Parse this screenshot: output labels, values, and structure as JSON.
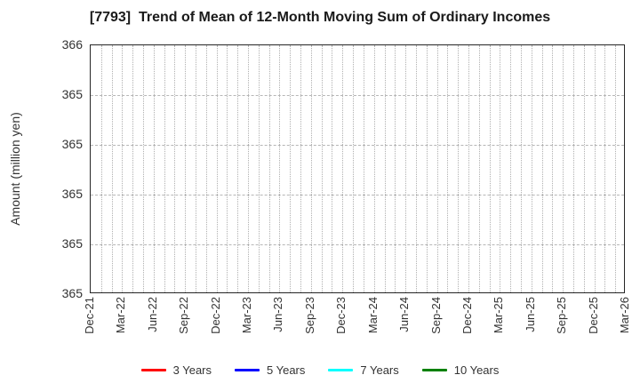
{
  "chart_data": {
    "type": "line",
    "title": "[7793]  Trend of Mean of 12-Month Moving Sum of Ordinary Incomes",
    "xlabel": "",
    "ylabel": "Amount (million yen)",
    "x_tick_labels": [
      "Dec-21",
      "Mar-22",
      "Jun-22",
      "Sep-22",
      "Dec-22",
      "Mar-23",
      "Jun-23",
      "Sep-23",
      "Dec-23",
      "Mar-24",
      "Jun-24",
      "Sep-24",
      "Dec-24",
      "Mar-25",
      "Jun-25",
      "Sep-25",
      "Dec-25",
      "Mar-26"
    ],
    "months_per_tick": 3,
    "y_tick_labels_top_to_bottom": [
      "366",
      "365",
      "365",
      "365",
      "365",
      "365"
    ],
    "ylim_display": [
      365,
      366
    ],
    "grid": true,
    "legend_position": "bottom-center",
    "series": [
      {
        "name": "3 Years",
        "color": "#ff0000",
        "values": []
      },
      {
        "name": "5 Years",
        "color": "#0000ff",
        "values": []
      },
      {
        "name": "7 Years",
        "color": "#00ffff",
        "values": []
      },
      {
        "name": "10 Years",
        "color": "#008000",
        "values": []
      }
    ],
    "plot_area_empty": true
  },
  "colors": {
    "background": "#ffffff",
    "axis_border": "#262626",
    "grid_vertical": "#b0b0b0",
    "grid_horizontal": "#b6b6b6",
    "tick_text": "#333333",
    "title_text": "#1a1a1a"
  }
}
